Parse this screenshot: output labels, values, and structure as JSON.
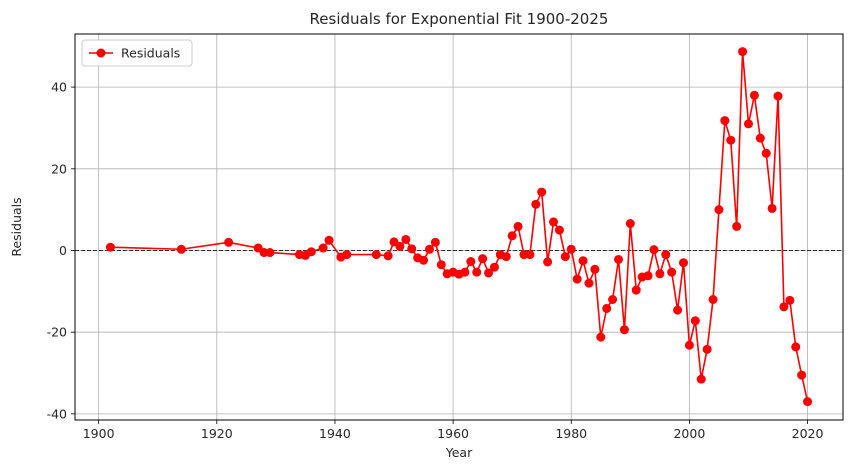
{
  "chart_data": {
    "type": "line",
    "title": "Residuals for Exponential Fit 1900-2025",
    "xlabel": "Year",
    "ylabel": "Residuals",
    "xlim": [
      1896,
      2026
    ],
    "ylim": [
      -41.5,
      53
    ],
    "xticks": [
      1900,
      1920,
      1940,
      1960,
      1980,
      2000,
      2020
    ],
    "yticks": [
      -40,
      -20,
      0,
      20,
      40
    ],
    "grid": true,
    "reference_line": 0,
    "legend": {
      "position": "top-left",
      "entries": [
        "Residuals"
      ]
    },
    "series": [
      {
        "name": "Residuals",
        "color": "#ff0000",
        "marker": "circle",
        "x": [
          1902,
          1914,
          1922,
          1927,
          1928,
          1929,
          1934,
          1935,
          1936,
          1938,
          1939,
          1941,
          1942,
          1947,
          1949,
          1950,
          1951,
          1952,
          1953,
          1954,
          1955,
          1956,
          1957,
          1958,
          1959,
          1960,
          1961,
          1962,
          1963,
          1964,
          1965,
          1966,
          1967,
          1968,
          1969,
          1970,
          1971,
          1972,
          1973,
          1974,
          1975,
          1976,
          1977,
          1978,
          1979,
          1980,
          1981,
          1982,
          1983,
          1984,
          1985,
          1986,
          1987,
          1988,
          1989,
          1990,
          1991,
          1992,
          1993,
          1994,
          1995,
          1996,
          1997,
          1998,
          1999,
          2000,
          2001,
          2002,
          2003,
          2004,
          2005,
          2006,
          2007,
          2008,
          2009,
          2010,
          2011,
          2012,
          2013,
          2014,
          2015,
          2016,
          2017,
          2018,
          2019,
          2020
        ],
        "y": [
          0.8,
          0.3,
          2.0,
          0.6,
          -0.5,
          -0.5,
          -1.0,
          -1.2,
          -0.3,
          0.6,
          2.5,
          -1.6,
          -1.0,
          -1.0,
          -1.3,
          2.1,
          1.0,
          2.7,
          0.4,
          -1.8,
          -2.4,
          0.3,
          2.0,
          -3.5,
          -5.7,
          -5.3,
          -5.8,
          -5.3,
          -2.7,
          -5.3,
          -2.0,
          -5.5,
          -4.1,
          -1.0,
          -1.5,
          3.6,
          5.9,
          -1.0,
          -1.0,
          11.3,
          14.3,
          -2.8,
          7.0,
          5.0,
          -1.5,
          0.3,
          -7.0,
          -2.5,
          -8.0,
          -4.6,
          -21.2,
          -14.2,
          -12.0,
          -2.2,
          -19.4,
          6.6,
          -9.7,
          -6.5,
          -6.2,
          0.2,
          -5.7,
          -1.0,
          -5.3,
          -14.6,
          -3.0,
          -23.2,
          -17.2,
          -31.5,
          -24.2,
          -12.0,
          10.0,
          31.8,
          27.0,
          5.9,
          48.7,
          31.0,
          38.0,
          27.5,
          23.8,
          10.3,
          37.8,
          -13.8,
          -12.2,
          -23.6,
          -30.5,
          -37.0
        ]
      }
    ]
  }
}
